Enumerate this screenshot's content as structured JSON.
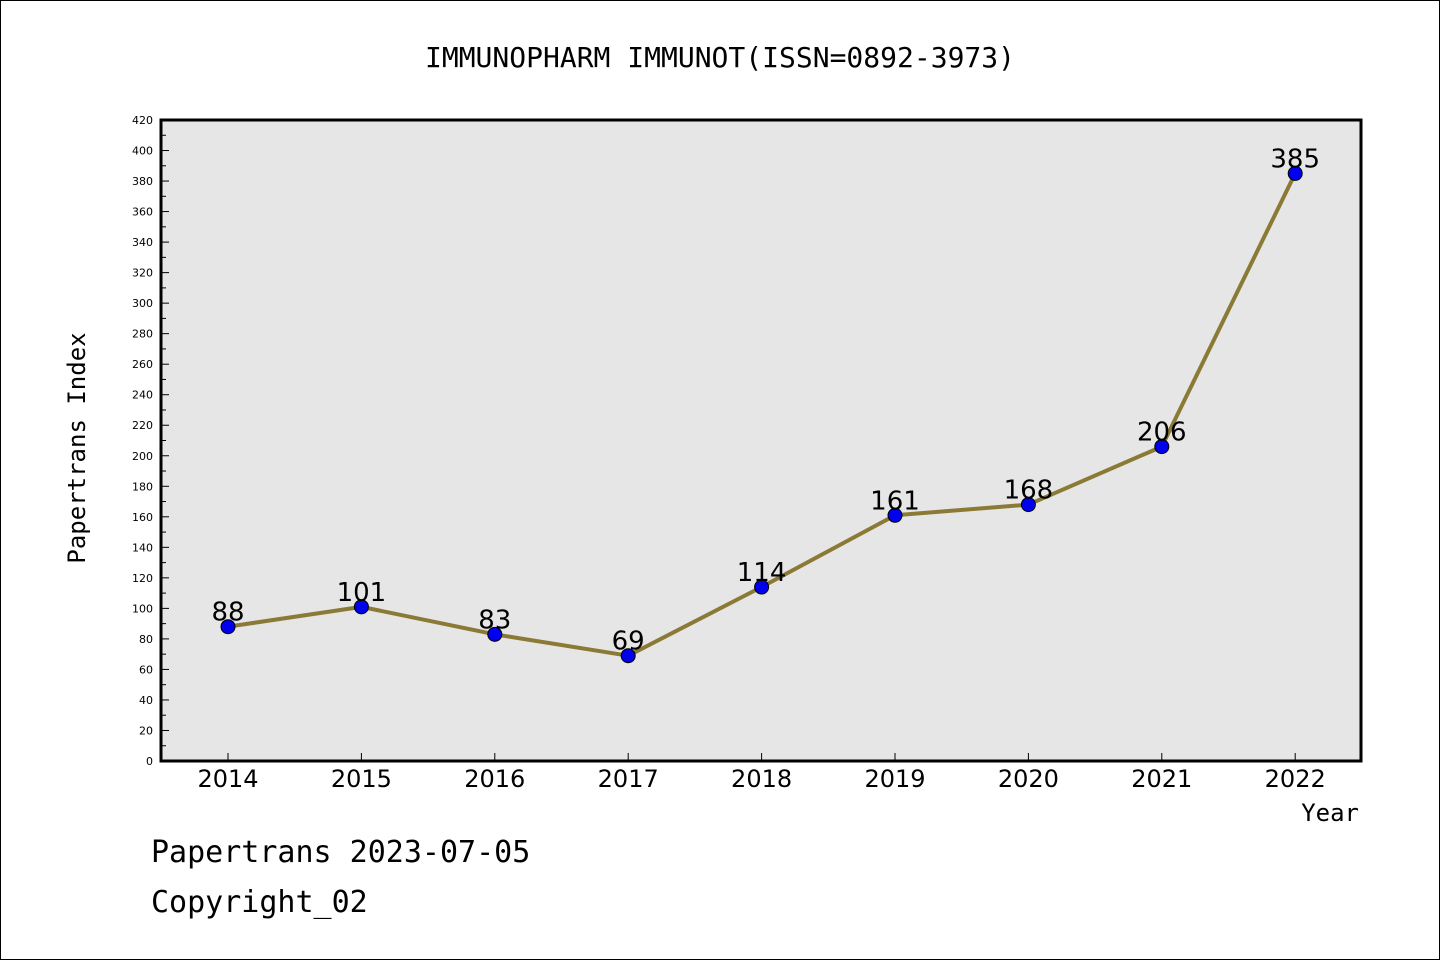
{
  "chart_data": {
    "type": "line",
    "title": "IMMUNOPHARM IMMUNOT(ISSN=0892-3973)",
    "xlabel": "Year",
    "ylabel": "Papertrans Index",
    "categories": [
      "2014",
      "2015",
      "2016",
      "2017",
      "2018",
      "2019",
      "2020",
      "2021",
      "2022"
    ],
    "series": [
      {
        "values": [
          88,
          101,
          83,
          69,
          114,
          161,
          168,
          206,
          385
        ]
      }
    ],
    "ylim": [
      0,
      420
    ],
    "ytick_step": 20,
    "grid": false,
    "line_color": "#8B7A35",
    "marker_color": "#0000EE",
    "plot_background": "#E6E6E6"
  },
  "footer": {
    "line1": "Papertrans 2023-07-05",
    "line2": "Copyright_02"
  }
}
